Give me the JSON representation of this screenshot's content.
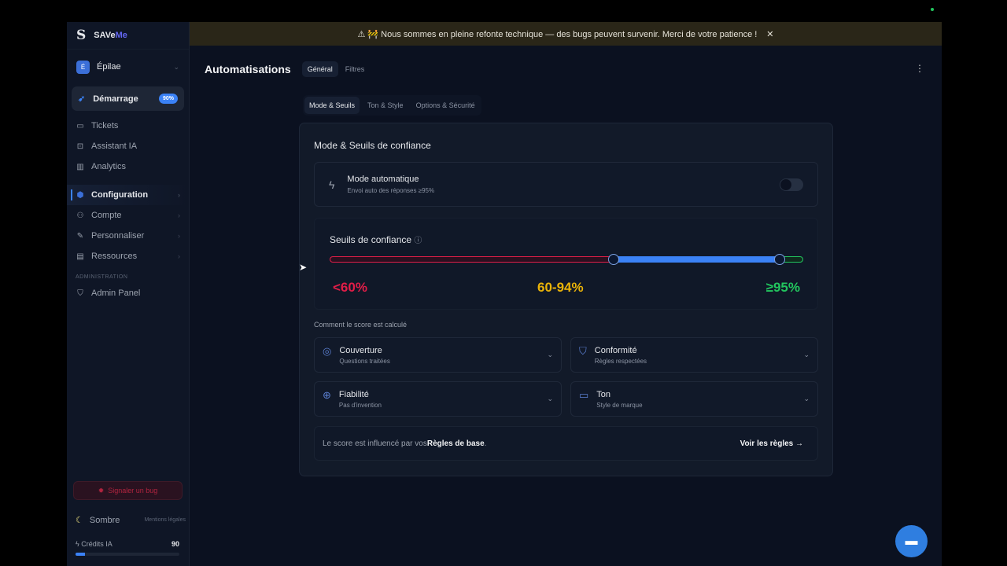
{
  "brand": {
    "name_a": "SAVe",
    "name_b": "Me"
  },
  "workspace": {
    "initial": "É",
    "name": "Épilae"
  },
  "sidebar": {
    "start": {
      "label": "Démarrage",
      "badge": "90%"
    },
    "items": [
      {
        "label": "Tickets"
      },
      {
        "label": "Assistant IA"
      },
      {
        "label": "Analytics"
      }
    ],
    "groups": [
      {
        "label": "Configuration"
      },
      {
        "label": "Compte"
      },
      {
        "label": "Personnaliser"
      },
      {
        "label": "Ressources"
      }
    ],
    "admin_section": "ADMINISTRATION",
    "admin_item": "Admin Panel",
    "bug_button": "Signaler un bug",
    "theme": "Sombre",
    "legal": "Mentions légales",
    "credits": {
      "label": "Crédits IA",
      "value": "90",
      "fill_percent": 9
    }
  },
  "banner": {
    "text": "⚠ 🚧 Nous sommes en pleine refonte technique — des bugs peuvent survenir. Merci de votre patience !",
    "close": "✕"
  },
  "header": {
    "title": "Automatisations",
    "tabs": [
      "Général",
      "Filtres"
    ],
    "active_tab": "Général"
  },
  "subtabs": [
    "Mode & Seuils",
    "Ton & Style",
    "Options & Sécurité"
  ],
  "card": {
    "title": "Mode & Seuils de confiance",
    "mode": {
      "title": "Mode automatique",
      "subtitle": "Envoi auto des réponses ≥95%",
      "enabled": false
    },
    "thresholds": {
      "title": "Seuils de confiance",
      "low": 60,
      "high": 95,
      "labels": {
        "low": "<60%",
        "mid": "60-94%",
        "high": "≥95%"
      },
      "colors": {
        "low": "#e11d48",
        "mid": "#eab308",
        "high": "#22c55e",
        "accent": "#3b82f6"
      }
    },
    "how_label": "Comment le score est calculé",
    "criteria": [
      {
        "title": "Couverture",
        "subtitle": "Questions traitées",
        "icon": "check-circle-icon"
      },
      {
        "title": "Conformité",
        "subtitle": "Règles respectées",
        "icon": "shield-icon"
      },
      {
        "title": "Fiabilité",
        "subtitle": "Pas d'invention",
        "icon": "globe-icon"
      },
      {
        "title": "Ton",
        "subtitle": "Style de marque",
        "icon": "message-icon"
      }
    ],
    "rules": {
      "prefix": "Le score est influencé par vos ",
      "bold": "Règles de base",
      "suffix": ".",
      "link": "Voir les règles →"
    }
  }
}
